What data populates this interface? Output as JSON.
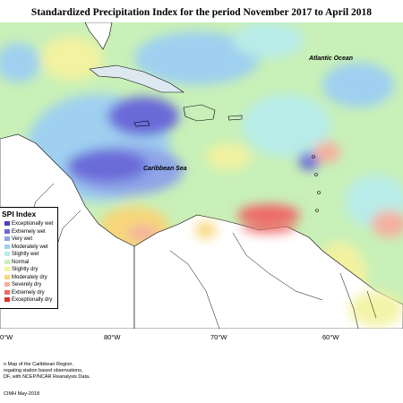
{
  "title": "Standardized Precipitation Index for the period November 2017 to April 2018",
  "map_labels": {
    "atlantic": "Atlantic Ocean",
    "caribbean": "Caribbean Sea"
  },
  "legend": {
    "title": "SPI Index",
    "items": [
      {
        "label": "Exceptionally wet",
        "color": "#4b3fbf"
      },
      {
        "label": "Extremely wet",
        "color": "#6a6ad8"
      },
      {
        "label": "Very wet",
        "color": "#8ea4e8"
      },
      {
        "label": "Moderately wet",
        "color": "#9fd0f0"
      },
      {
        "label": "Slightly wet",
        "color": "#b8ece8"
      },
      {
        "label": "Normal",
        "color": "#c8f0b8"
      },
      {
        "label": "Slightly dry",
        "color": "#f2f2a0"
      },
      {
        "label": "Moderately dry",
        "color": "#f6d77a"
      },
      {
        "label": "Severely dry",
        "color": "#f4b0a0"
      },
      {
        "label": "Extremely dry",
        "color": "#ee6a6a"
      },
      {
        "label": "Exceptionally dry",
        "color": "#e03030"
      }
    ]
  },
  "longitude_labels": [
    "0°W",
    "80°W",
    "70°W",
    "60°W"
  ],
  "notes": [
    "n Map of the Caribbean Region.",
    "regating station based observations,",
    "DF, with NCEP/NCAR Reanalysis Data.",
    "CIMH May-2018"
  ]
}
